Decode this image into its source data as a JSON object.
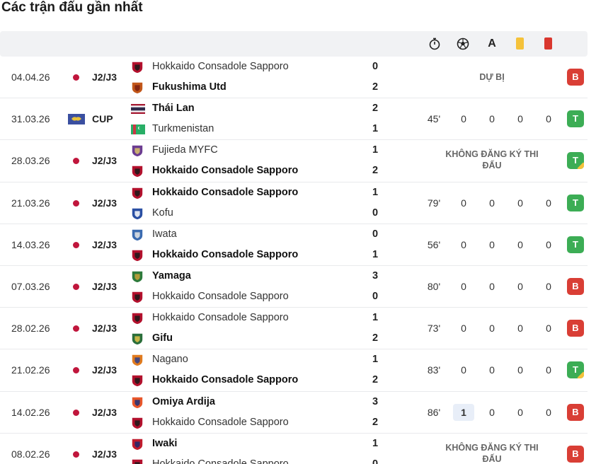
{
  "title": "Các trận đấu gần nhất",
  "colors": {
    "loss": "#d93e35",
    "win": "#3cad55",
    "yellow": "#f5c23a",
    "red": "#d9372e",
    "accent_dot": "#c0163c"
  },
  "header_icons": [
    "stopwatch-icon",
    "soccer-ball-icon",
    "assist-icon",
    "yellow-card-icon",
    "red-card-icon"
  ],
  "header": {
    "assist_label": "A"
  },
  "matches": [
    {
      "date": "04.04.26",
      "comp": "J2/J3",
      "comp_flag": "japan",
      "home": "Hokkaido Consadole Sapporo",
      "away": "Fukushima Utd",
      "winner": "away",
      "home_score": "0",
      "away_score": "2",
      "note": "DỰ BỊ",
      "result": "B"
    },
    {
      "date": "31.03.26",
      "comp": "CUP",
      "comp_flag": "asia",
      "home": "Thái Lan",
      "away": "Turkmenistan",
      "winner": "home",
      "home_score": "2",
      "away_score": "1",
      "minutes": "45'",
      "goals": "0",
      "assists": "0",
      "yellow": "0",
      "red": "0",
      "result": "T"
    },
    {
      "date": "28.03.26",
      "comp": "J2/J3",
      "comp_flag": "japan",
      "home": "Fujieda MYFC",
      "away": "Hokkaido Consadole Sapporo",
      "winner": "away",
      "home_score": "1",
      "away_score": "2",
      "note": "KHÔNG ĐĂNG KÝ THI ĐẤU",
      "result": "T",
      "corner": true
    },
    {
      "date": "21.03.26",
      "comp": "J2/J3",
      "comp_flag": "japan",
      "home": "Hokkaido Consadole Sapporo",
      "away": "Kofu",
      "winner": "home",
      "home_score": "1",
      "away_score": "0",
      "minutes": "79'",
      "goals": "0",
      "assists": "0",
      "yellow": "0",
      "red": "0",
      "result": "T"
    },
    {
      "date": "14.03.26",
      "comp": "J2/J3",
      "comp_flag": "japan",
      "home": "Iwata",
      "away": "Hokkaido Consadole Sapporo",
      "winner": "away",
      "home_score": "0",
      "away_score": "1",
      "minutes": "56'",
      "goals": "0",
      "assists": "0",
      "yellow": "0",
      "red": "0",
      "result": "T"
    },
    {
      "date": "07.03.26",
      "comp": "J2/J3",
      "comp_flag": "japan",
      "home": "Yamaga",
      "away": "Hokkaido Consadole Sapporo",
      "winner": "home",
      "home_score": "3",
      "away_score": "0",
      "minutes": "80'",
      "goals": "0",
      "assists": "0",
      "yellow": "0",
      "red": "0",
      "result": "B"
    },
    {
      "date": "28.02.26",
      "comp": "J2/J3",
      "comp_flag": "japan",
      "home": "Hokkaido Consadole Sapporo",
      "away": "Gifu",
      "winner": "away",
      "home_score": "1",
      "away_score": "2",
      "minutes": "73'",
      "goals": "0",
      "assists": "0",
      "yellow": "0",
      "red": "0",
      "result": "B"
    },
    {
      "date": "21.02.26",
      "comp": "J2/J3",
      "comp_flag": "japan",
      "home": "Nagano",
      "away": "Hokkaido Consadole Sapporo",
      "winner": "away",
      "home_score": "1",
      "away_score": "2",
      "minutes": "83'",
      "goals": "0",
      "assists": "0",
      "yellow": "0",
      "red": "0",
      "result": "T",
      "corner": true
    },
    {
      "date": "14.02.26",
      "comp": "J2/J3",
      "comp_flag": "japan",
      "home": "Omiya Ardija",
      "away": "Hokkaido Consadole Sapporo",
      "winner": "home",
      "home_score": "3",
      "away_score": "2",
      "minutes": "86'",
      "goals": "1",
      "assists": "0",
      "yellow": "0",
      "red": "0",
      "result": "B",
      "goals_highlight": true
    },
    {
      "date": "08.02.26",
      "comp": "J2/J3",
      "comp_flag": "japan",
      "home": "Iwaki",
      "away": "Hokkaido Consadole Sapporo",
      "winner": "home",
      "home_score": "1",
      "away_score": "0",
      "note": "KHÔNG ĐĂNG KÝ THI ĐẤU",
      "result": "B"
    }
  ]
}
